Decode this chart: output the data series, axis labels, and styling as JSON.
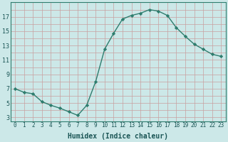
{
  "x": [
    0,
    1,
    2,
    3,
    4,
    5,
    6,
    7,
    8,
    9,
    10,
    11,
    12,
    13,
    14,
    15,
    16,
    17,
    18,
    19,
    20,
    21,
    22,
    23
  ],
  "y": [
    7.0,
    6.5,
    6.3,
    5.2,
    4.7,
    4.3,
    3.8,
    3.3,
    4.7,
    8.0,
    12.5,
    14.7,
    16.7,
    17.2,
    17.5,
    18.0,
    17.8,
    17.2,
    15.5,
    14.3,
    13.2,
    12.5,
    11.8,
    11.5
  ],
  "line_color": "#2e7d6e",
  "marker": "D",
  "marker_size": 2.2,
  "bg_color": "#cce8e8",
  "grid_color_v": "#c8a0a0",
  "grid_color_h": "#c8a0a0",
  "xlabel": "Humidex (Indice chaleur)",
  "xlabel_fontsize": 7,
  "ylabel_ticks": [
    3,
    5,
    7,
    9,
    11,
    13,
    15,
    17
  ],
  "xlim": [
    -0.5,
    23.5
  ],
  "ylim": [
    2.5,
    19.0
  ],
  "line_width": 1.0,
  "tick_fontsize": 5.5,
  "ytick_fontsize": 6.0
}
